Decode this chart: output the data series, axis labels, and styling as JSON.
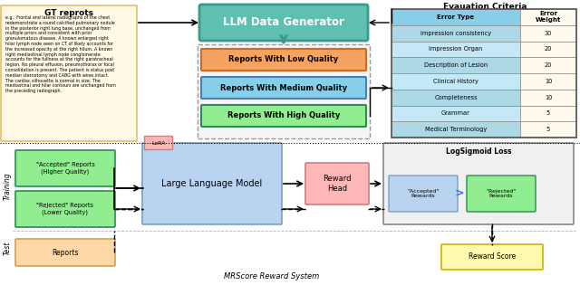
{
  "bg_color": "#ffffff",
  "top_section": {
    "gt_reports_title": "GT reprots",
    "gt_reports_text": "e.g.: Frontal and lateral radiographs of the chest\nredemonstrate a round calcified pulmonary nodule\nin the posterior right lung base, unchanged from\nmultiple priors and consistent with prior\ngranulomatous disease. A known enlarged right\nhilar lymph node seen on CT of likely accounts for\nthe increased opacity at the right hilum. A known\nright mediastinal lymph node conglomerate\naccounts for the fullness at the right paratracheal\nregion. No pleural effusion, pneumothorax or focal\nconsolidation is present. The patient is status post\nmedian sternotomy and CABG with wires intact.\nThe cardiac silhouette is normal in size. The\nmediastinal and hilar contours are unchanged from\nthe preceding radiograph.",
    "gt_box_color": "#fff9e6",
    "gt_box_edge": "#e8c87a",
    "llm_box_text": "LLM Data Generator",
    "llm_box_color": "#5fbfb0",
    "llm_box_edge": "#3a9a8c",
    "reports_low_text": "Reports With Low Quality",
    "reports_medium_text": "Reports With Medium Quality",
    "reports_high_text": "Reports With High Quality",
    "reports_low_color": "#f4a460",
    "reports_medium_color": "#87ceeb",
    "reports_high_color": "#90ee90",
    "reports_low_edge": "#d2691e",
    "reports_medium_edge": "#4682b4",
    "reports_high_edge": "#2e8b57",
    "eval_title": "Evauation Criteria",
    "eval_error_types": [
      "Error Type",
      "Impression consistency",
      "Impression Organ",
      "Description of Lesion",
      "Clinical History",
      "Completeness",
      "Grammar",
      "Medical Terminology"
    ],
    "eval_weights": [
      "Error\nWeight",
      "30",
      "20",
      "20",
      "10",
      "10",
      "5",
      "5"
    ]
  },
  "bottom_section": {
    "accepted_text": "\"Accepted\" Reports\n(Higher Quality)",
    "rejected_text": "\"Rejected\" Reports\n(Lower Quality)",
    "reports_test_text": "Reports",
    "accepted_color": "#90ee90",
    "accepted_edge": "#2e8b57",
    "rejected_color": "#90ee90",
    "rejected_edge": "#2e8b57",
    "reports_test_color": "#ffd8a8",
    "reports_test_edge": "#d4a055",
    "llm_box_text": "Large Language Model",
    "llm_box_color": "#b8d4f0",
    "llm_box_edge": "#7a9fc0",
    "lora_text": "LoRA",
    "lora_color": "#ffb6b6",
    "lora_edge": "#cc8080",
    "reward_head_text": "Reward\nHead",
    "reward_head_color": "#ffb6b6",
    "reward_head_edge": "#cc8080",
    "logsigmoid_title": "LogSigmoid Loss",
    "logsigmoid_color": "#f0f0f0",
    "logsigmoid_edge": "#888888",
    "accepted_reward_text": "\"Accepted\"\nRewards",
    "rejected_reward_text": "\"Rejected\"\nRewards",
    "accepted_reward_color": "#b8d4f0",
    "rejected_reward_color": "#90ee90",
    "reward_score_text": "Reward Score",
    "reward_score_color": "#fff9b0",
    "reward_score_edge": "#c8b400",
    "training_label": "Training",
    "test_label": "Test",
    "system_label": "MRScore Reward System"
  }
}
